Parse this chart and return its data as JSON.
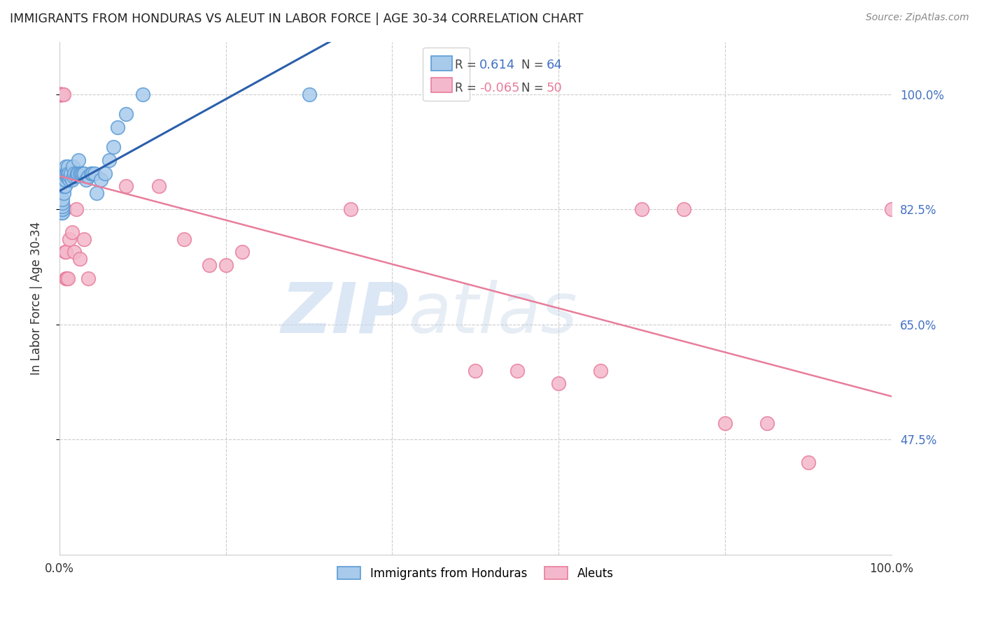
{
  "title": "IMMIGRANTS FROM HONDURAS VS ALEUT IN LABOR FORCE | AGE 30-34 CORRELATION CHART",
  "source": "Source: ZipAtlas.com",
  "ylabel": "In Labor Force | Age 30-34",
  "xlim": [
    0.0,
    1.0
  ],
  "ylim": [
    0.3,
    1.08
  ],
  "yticks": [
    0.475,
    0.65,
    0.825,
    1.0
  ],
  "ytick_labels": [
    "47.5%",
    "65.0%",
    "82.5%",
    "100.0%"
  ],
  "blue_R": 0.614,
  "blue_N": 64,
  "pink_R": -0.065,
  "pink_N": 50,
  "blue_label": "Immigrants from Honduras",
  "pink_label": "Aleuts",
  "blue_color": "#a8caeb",
  "pink_color": "#f4b8cc",
  "blue_edge_color": "#5b9bd5",
  "pink_edge_color": "#e87d9b",
  "blue_line_color": "#2b5fac",
  "pink_line_color": "#e87d9b",
  "watermark_zip": "ZIP",
  "watermark_atlas": "atlas",
  "background_color": "#ffffff",
  "blue_x": [
    0.001,
    0.001,
    0.001,
    0.001,
    0.002,
    0.002,
    0.002,
    0.002,
    0.002,
    0.003,
    0.003,
    0.003,
    0.003,
    0.003,
    0.003,
    0.004,
    0.004,
    0.004,
    0.004,
    0.004,
    0.005,
    0.005,
    0.006,
    0.006,
    0.007,
    0.007,
    0.007,
    0.008,
    0.008,
    0.009,
    0.009,
    0.01,
    0.01,
    0.01,
    0.011,
    0.012,
    0.013,
    0.014,
    0.015,
    0.016,
    0.017,
    0.018,
    0.02,
    0.021,
    0.022,
    0.023,
    0.025,
    0.026,
    0.028,
    0.03,
    0.032,
    0.035,
    0.038,
    0.04,
    0.042,
    0.045,
    0.05,
    0.055,
    0.06,
    0.065,
    0.07,
    0.08,
    0.1,
    0.3
  ],
  "blue_y": [
    0.825,
    0.825,
    0.83,
    0.83,
    0.83,
    0.83,
    0.835,
    0.835,
    0.84,
    0.82,
    0.825,
    0.825,
    0.83,
    0.83,
    0.835,
    0.82,
    0.825,
    0.83,
    0.835,
    0.84,
    0.85,
    0.86,
    0.86,
    0.87,
    0.86,
    0.87,
    0.88,
    0.88,
    0.89,
    0.875,
    0.88,
    0.875,
    0.88,
    0.89,
    0.88,
    0.87,
    0.875,
    0.88,
    0.87,
    0.89,
    0.875,
    0.88,
    0.875,
    0.88,
    0.88,
    0.9,
    0.88,
    0.88,
    0.88,
    0.88,
    0.87,
    0.875,
    0.88,
    0.88,
    0.88,
    0.85,
    0.87,
    0.88,
    0.9,
    0.92,
    0.95,
    0.97,
    1.0,
    1.0
  ],
  "pink_x": [
    0.0,
    0.0,
    0.0,
    0.001,
    0.001,
    0.001,
    0.002,
    0.002,
    0.002,
    0.002,
    0.003,
    0.003,
    0.003,
    0.003,
    0.004,
    0.004,
    0.004,
    0.005,
    0.005,
    0.006,
    0.006,
    0.007,
    0.008,
    0.008,
    0.009,
    0.01,
    0.012,
    0.015,
    0.018,
    0.02,
    0.025,
    0.03,
    0.035,
    0.08,
    0.12,
    0.15,
    0.18,
    0.2,
    0.22,
    0.35,
    0.5,
    0.55,
    0.6,
    0.65,
    0.7,
    0.75,
    0.8,
    0.85,
    0.9,
    1.0
  ],
  "pink_y": [
    1.0,
    1.0,
    1.0,
    1.0,
    1.0,
    1.0,
    1.0,
    1.0,
    1.0,
    1.0,
    1.0,
    1.0,
    1.0,
    0.825,
    1.0,
    0.825,
    0.825,
    1.0,
    0.825,
    0.825,
    0.825,
    0.76,
    0.76,
    0.72,
    0.72,
    0.72,
    0.78,
    0.79,
    0.76,
    0.825,
    0.75,
    0.78,
    0.72,
    0.86,
    0.86,
    0.78,
    0.74,
    0.74,
    0.76,
    0.825,
    0.58,
    0.58,
    0.56,
    0.58,
    0.825,
    0.825,
    0.5,
    0.5,
    0.44,
    0.825
  ]
}
